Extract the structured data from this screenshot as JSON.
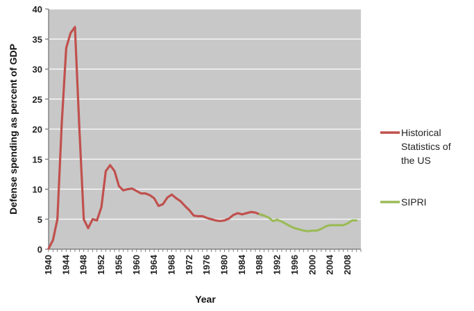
{
  "chart_data": {
    "type": "line",
    "title": "",
    "xlabel": "Year",
    "ylabel": "Defense spending as percent of GDP",
    "xlim": [
      1940,
      2011
    ],
    "ylim": [
      0,
      40
    ],
    "yticks": [
      0,
      5,
      10,
      15,
      20,
      25,
      30,
      35,
      40
    ],
    "xticks": [
      1940,
      1944,
      1948,
      1952,
      1956,
      1960,
      1964,
      1968,
      1972,
      1976,
      1980,
      1984,
      1988,
      1992,
      1996,
      2000,
      2004,
      2008
    ],
    "grid": true,
    "legend_position": "right",
    "colors": {
      "plot_background": "#c8c8c8",
      "grid": "#ffffff"
    },
    "series": [
      {
        "name": "Historical Statistics of the US",
        "legend_lines": [
          "Historical",
          "Statistics of",
          "the US"
        ],
        "color": "#c0504d",
        "x": [
          1940,
          1941,
          1942,
          1943,
          1944,
          1945,
          1946,
          1947,
          1948,
          1949,
          1950,
          1951,
          1952,
          1953,
          1954,
          1955,
          1956,
          1957,
          1958,
          1959,
          1960,
          1961,
          1962,
          1963,
          1964,
          1965,
          1966,
          1967,
          1968,
          1969,
          1970,
          1971,
          1972,
          1973,
          1974,
          1975,
          1976,
          1977,
          1978,
          1979,
          1980,
          1981,
          1982,
          1983,
          1984,
          1985,
          1986,
          1987,
          1988,
          1989
        ],
        "values": [
          0.1,
          1.5,
          5.0,
          21.0,
          33.5,
          36.0,
          37.0,
          20.0,
          5.0,
          3.5,
          5.0,
          4.8,
          7.0,
          13.0,
          14.0,
          13.0,
          10.5,
          9.8,
          10.0,
          10.1,
          9.7,
          9.3,
          9.3,
          9.0,
          8.5,
          7.2,
          7.5,
          8.6,
          9.1,
          8.5,
          8.0,
          7.2,
          6.5,
          5.6,
          5.5,
          5.5,
          5.2,
          5.0,
          4.8,
          4.7,
          4.8,
          5.1,
          5.7,
          6.0,
          5.8,
          6.0,
          6.2,
          6.1,
          5.8,
          5.6
        ]
      },
      {
        "name": "SIPRI",
        "legend_lines": [
          "SIPRI"
        ],
        "color": "#9bbb59",
        "x": [
          1988,
          1989,
          1990,
          1991,
          1992,
          1993,
          1994,
          1995,
          1996,
          1997,
          1998,
          1999,
          2000,
          2001,
          2002,
          2003,
          2004,
          2005,
          2006,
          2007,
          2008,
          2009,
          2010
        ],
        "values": [
          5.8,
          5.6,
          5.3,
          4.7,
          4.9,
          4.6,
          4.2,
          3.8,
          3.5,
          3.3,
          3.1,
          3.0,
          3.1,
          3.1,
          3.4,
          3.8,
          4.0,
          4.0,
          4.0,
          4.0,
          4.3,
          4.8,
          4.8
        ]
      }
    ]
  }
}
